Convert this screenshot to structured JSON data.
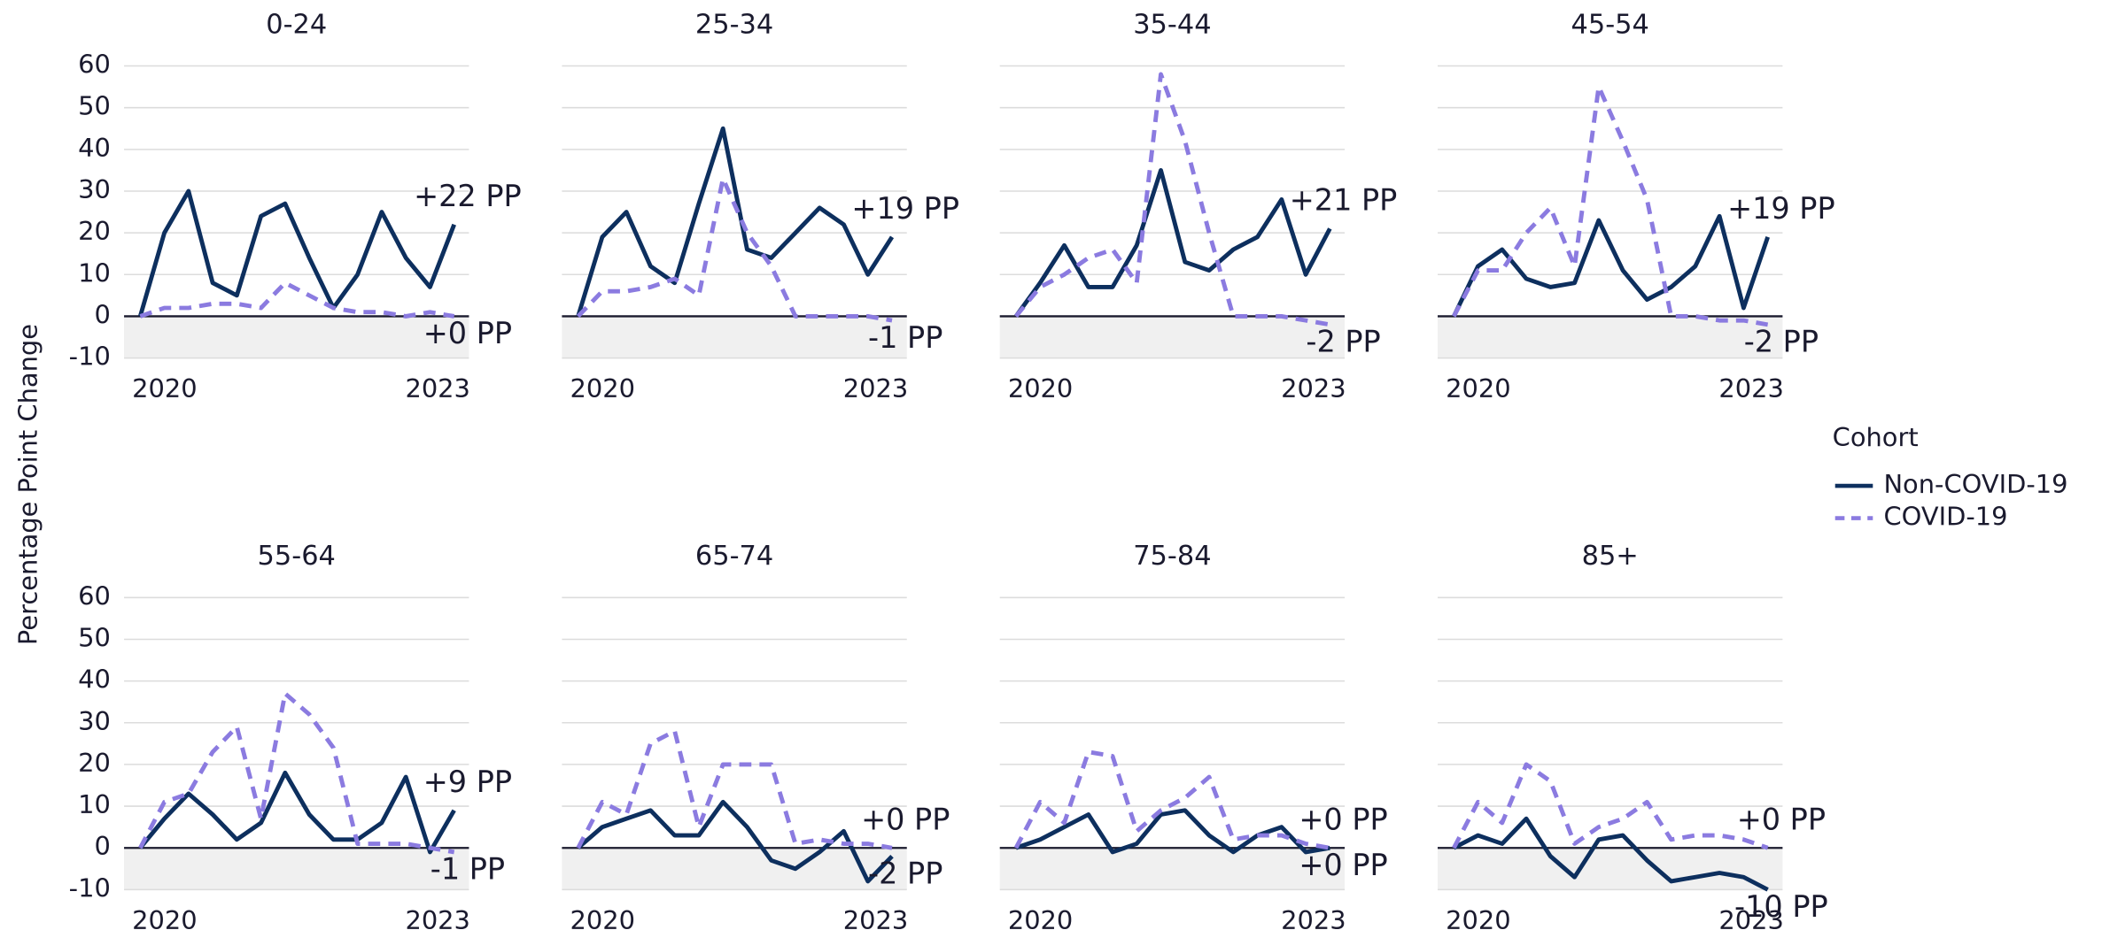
{
  "chart_data": [
    {
      "type": "line",
      "title": "0-24",
      "categories": [
        "2020",
        null,
        null,
        null,
        null,
        null,
        null,
        null,
        null,
        null,
        null,
        null,
        null,
        "2023"
      ],
      "ylim": [
        -10,
        60
      ],
      "yticks": [
        -10,
        0,
        10,
        20,
        30,
        40,
        50,
        60
      ],
      "grid": true,
      "series": [
        {
          "name": "Non-COVID-19",
          "color": "#0d2f5e",
          "dashed": false,
          "values": [
            0,
            20,
            30,
            8,
            5,
            24,
            27,
            14,
            2,
            10,
            25,
            14,
            7,
            22
          ],
          "end_label": "+22 PP"
        },
        {
          "name": "COVID-19",
          "color": "#8b7be0",
          "dashed": true,
          "label_color": "#5b3fd0",
          "values": [
            0,
            2,
            2,
            3,
            3,
            2,
            8,
            5,
            2,
            1,
            1,
            0,
            1,
            0
          ],
          "end_label": "+0 PP"
        }
      ]
    },
    {
      "type": "line",
      "title": "25-34",
      "categories": [
        "2020",
        null,
        null,
        null,
        null,
        null,
        null,
        null,
        null,
        null,
        null,
        null,
        null,
        "2023"
      ],
      "ylim": [
        -10,
        60
      ],
      "yticks": [
        -10,
        0,
        10,
        20,
        30,
        40,
        50,
        60
      ],
      "grid": true,
      "series": [
        {
          "name": "Non-COVID-19",
          "color": "#0d2f5e",
          "dashed": false,
          "values": [
            0,
            19,
            25,
            12,
            8,
            27,
            45,
            16,
            14,
            20,
            26,
            22,
            10,
            19
          ],
          "end_label": "+19 PP"
        },
        {
          "name": "COVID-19",
          "color": "#8b7be0",
          "dashed": true,
          "label_color": "#5b3fd0",
          "values": [
            0,
            6,
            6,
            7,
            9,
            5,
            33,
            20,
            12,
            0,
            0,
            0,
            0,
            -1
          ],
          "end_label": "-1 PP"
        }
      ]
    },
    {
      "type": "line",
      "title": "35-44",
      "categories": [
        "2020",
        null,
        null,
        null,
        null,
        null,
        null,
        null,
        null,
        null,
        null,
        null,
        null,
        "2023"
      ],
      "ylim": [
        -10,
        60
      ],
      "yticks": [
        -10,
        0,
        10,
        20,
        30,
        40,
        50,
        60
      ],
      "grid": true,
      "series": [
        {
          "name": "Non-COVID-19",
          "color": "#0d2f5e",
          "dashed": false,
          "values": [
            0,
            8,
            17,
            7,
            7,
            17,
            35,
            13,
            11,
            16,
            19,
            28,
            10,
            21
          ],
          "end_label": "+21 PP"
        },
        {
          "name": "COVID-19",
          "color": "#8b7be0",
          "dashed": true,
          "label_color": "#5b3fd0",
          "values": [
            0,
            7,
            10,
            14,
            16,
            8,
            58,
            42,
            20,
            0,
            0,
            0,
            -1,
            -2
          ],
          "end_label": "-2 PP"
        }
      ]
    },
    {
      "type": "line",
      "title": "45-54",
      "categories": [
        "2020",
        null,
        null,
        null,
        null,
        null,
        null,
        null,
        null,
        null,
        null,
        null,
        null,
        "2023"
      ],
      "ylim": [
        -10,
        60
      ],
      "yticks": [
        -10,
        0,
        10,
        20,
        30,
        40,
        50,
        60
      ],
      "grid": true,
      "series": [
        {
          "name": "Non-COVID-19",
          "color": "#0d2f5e",
          "dashed": false,
          "values": [
            0,
            12,
            16,
            9,
            7,
            8,
            23,
            11,
            4,
            7,
            12,
            24,
            2,
            19
          ],
          "end_label": "+19 PP"
        },
        {
          "name": "COVID-19",
          "color": "#8b7be0",
          "dashed": true,
          "label_color": "#5b3fd0",
          "values": [
            0,
            11,
            11,
            20,
            26,
            12,
            55,
            42,
            28,
            0,
            0,
            -1,
            -1,
            -2
          ],
          "end_label": "-2 PP"
        }
      ]
    },
    {
      "type": "line",
      "title": "55-64",
      "categories": [
        "2020",
        null,
        null,
        null,
        null,
        null,
        null,
        null,
        null,
        null,
        null,
        null,
        null,
        "2023"
      ],
      "ylim": [
        -10,
        60
      ],
      "yticks": [
        -10,
        0,
        10,
        20,
        30,
        40,
        50,
        60
      ],
      "grid": true,
      "series": [
        {
          "name": "Non-COVID-19",
          "color": "#0d2f5e",
          "dashed": false,
          "values": [
            0,
            7,
            13,
            8,
            2,
            6,
            18,
            8,
            2,
            2,
            6,
            17,
            -1,
            9
          ],
          "end_label": "+9 PP"
        },
        {
          "name": "COVID-19",
          "color": "#8b7be0",
          "dashed": true,
          "label_color": "#5b3fd0",
          "values": [
            0,
            11,
            13,
            23,
            29,
            7,
            37,
            32,
            24,
            1,
            1,
            1,
            0,
            -1
          ],
          "end_label": "-1 PP"
        }
      ]
    },
    {
      "type": "line",
      "title": "65-74",
      "categories": [
        "2020",
        null,
        null,
        null,
        null,
        null,
        null,
        null,
        null,
        null,
        null,
        null,
        null,
        "2023"
      ],
      "ylim": [
        -10,
        60
      ],
      "yticks": [
        -10,
        0,
        10,
        20,
        30,
        40,
        50,
        60
      ],
      "grid": true,
      "series": [
        {
          "name": "Non-COVID-19",
          "color": "#0d2f5e",
          "dashed": false,
          "values": [
            0,
            5,
            7,
            9,
            3,
            3,
            11,
            5,
            -3,
            -5,
            -1,
            4,
            -8,
            -2
          ],
          "end_label": "-2 PP"
        },
        {
          "name": "COVID-19",
          "color": "#8b7be0",
          "dashed": true,
          "label_color": "#5b3fd0",
          "values": [
            0,
            11,
            8,
            25,
            28,
            5,
            20,
            20,
            20,
            1,
            2,
            1,
            1,
            0
          ],
          "end_label": "+0 PP"
        }
      ]
    },
    {
      "type": "line",
      "title": "75-84",
      "categories": [
        "2020",
        null,
        null,
        null,
        null,
        null,
        null,
        null,
        null,
        null,
        null,
        null,
        null,
        "2023"
      ],
      "ylim": [
        -10,
        60
      ],
      "yticks": [
        -10,
        0,
        10,
        20,
        30,
        40,
        50,
        60
      ],
      "grid": true,
      "series": [
        {
          "name": "Non-COVID-19",
          "color": "#0d2f5e",
          "dashed": false,
          "values": [
            0,
            2,
            5,
            8,
            -1,
            1,
            8,
            9,
            3,
            -1,
            3,
            5,
            -1,
            0
          ],
          "end_label": "+0 PP"
        },
        {
          "name": "COVID-19",
          "color": "#8b7be0",
          "dashed": true,
          "label_color": "#5b3fd0",
          "values": [
            0,
            11,
            6,
            23,
            22,
            4,
            9,
            12,
            17,
            2,
            3,
            3,
            1,
            0
          ],
          "end_label": "+0 PP"
        }
      ]
    },
    {
      "type": "line",
      "title": "85+",
      "categories": [
        "2020",
        null,
        null,
        null,
        null,
        null,
        null,
        null,
        null,
        null,
        null,
        null,
        null,
        "2023"
      ],
      "ylim": [
        -10,
        60
      ],
      "yticks": [
        -10,
        0,
        10,
        20,
        30,
        40,
        50,
        60
      ],
      "grid": true,
      "series": [
        {
          "name": "Non-COVID-19",
          "color": "#0d2f5e",
          "dashed": false,
          "values": [
            0,
            3,
            1,
            7,
            -2,
            -7,
            2,
            3,
            -3,
            -8,
            -7,
            -6,
            -7,
            -10
          ],
          "end_label": "-10 PP"
        },
        {
          "name": "COVID-19",
          "color": "#8b7be0",
          "dashed": true,
          "label_color": "#5b3fd0",
          "values": [
            0,
            11,
            6,
            20,
            16,
            1,
            5,
            7,
            11,
            2,
            3,
            3,
            2,
            0
          ],
          "end_label": "+0 PP"
        }
      ]
    }
  ],
  "ylabel": "Percentage Point Change",
  "legend_title": "Cohort"
}
